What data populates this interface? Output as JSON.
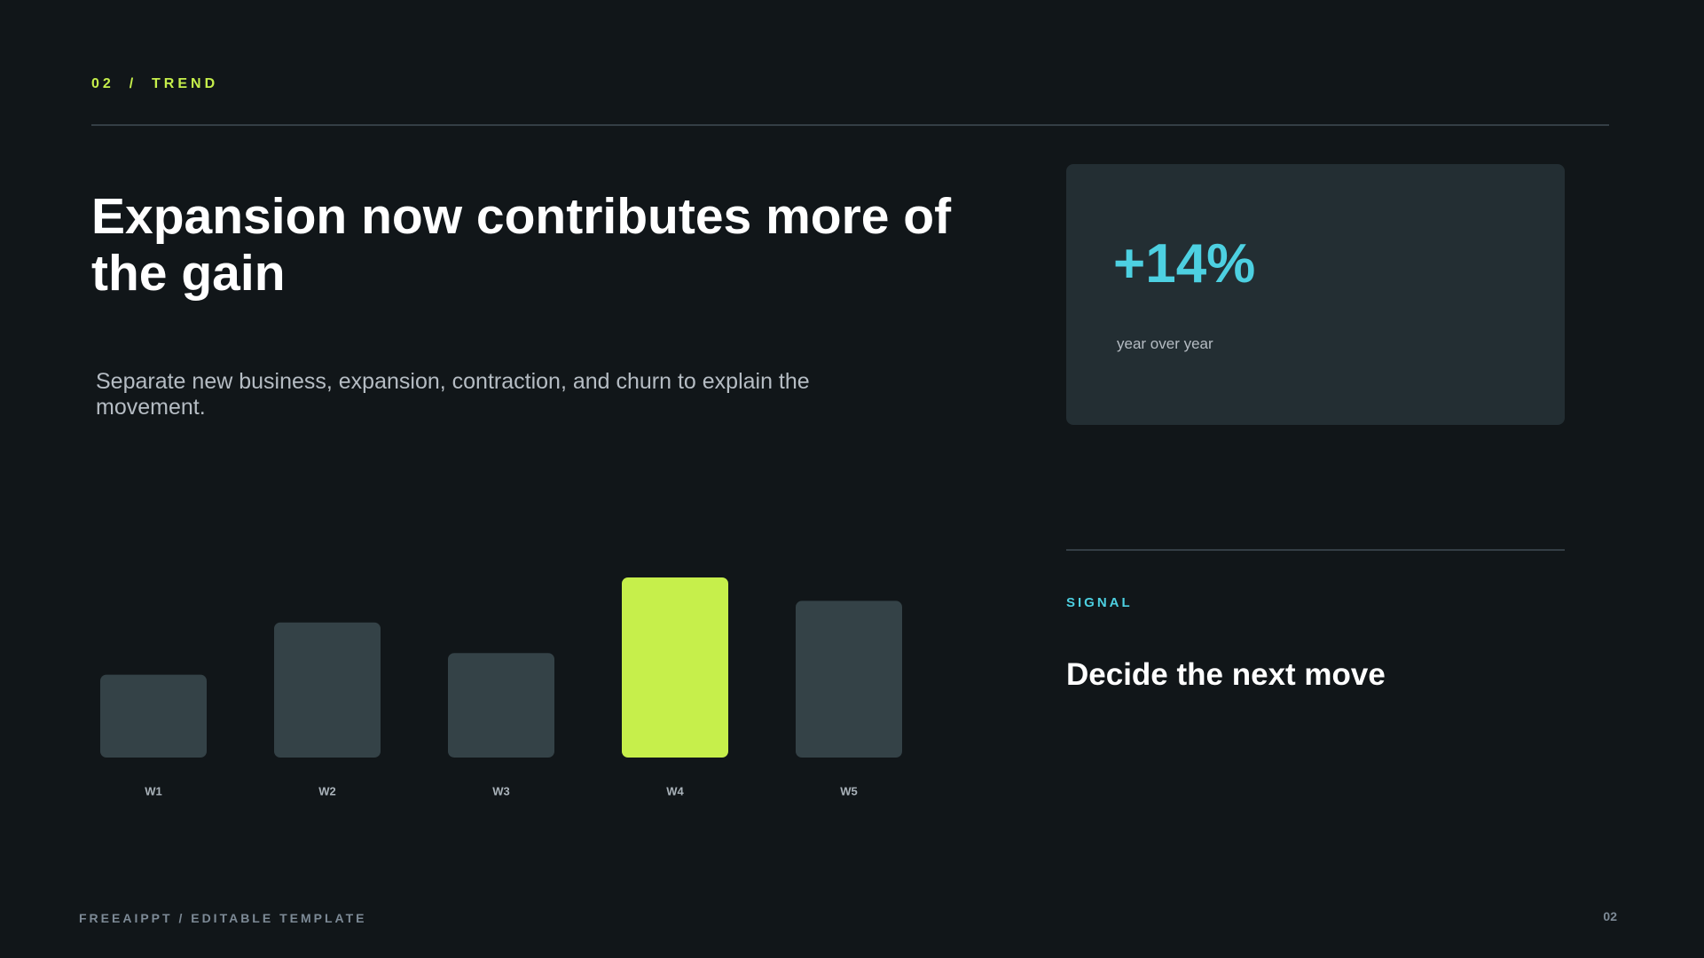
{
  "header": {
    "section": "02  /  TREND"
  },
  "title": "Expansion now contributes more of the gain",
  "subtitle": "Separate new business, expansion, contraction, and churn to explain the movement.",
  "stat": {
    "value": "+14%",
    "label": "year over year"
  },
  "signal": {
    "label": "SIGNAL",
    "heading": "Decide the next move"
  },
  "footer": {
    "left": "FREEAIPPT / EDITABLE TEMPLATE",
    "page": "02"
  },
  "chart_data": {
    "type": "bar",
    "categories": [
      "W1",
      "W2",
      "W3",
      "W4",
      "W5"
    ],
    "values": [
      46,
      75,
      58,
      100,
      87
    ],
    "colors": [
      "#344247",
      "#344247",
      "#344247",
      "#c6ef4b",
      "#344247"
    ]
  }
}
